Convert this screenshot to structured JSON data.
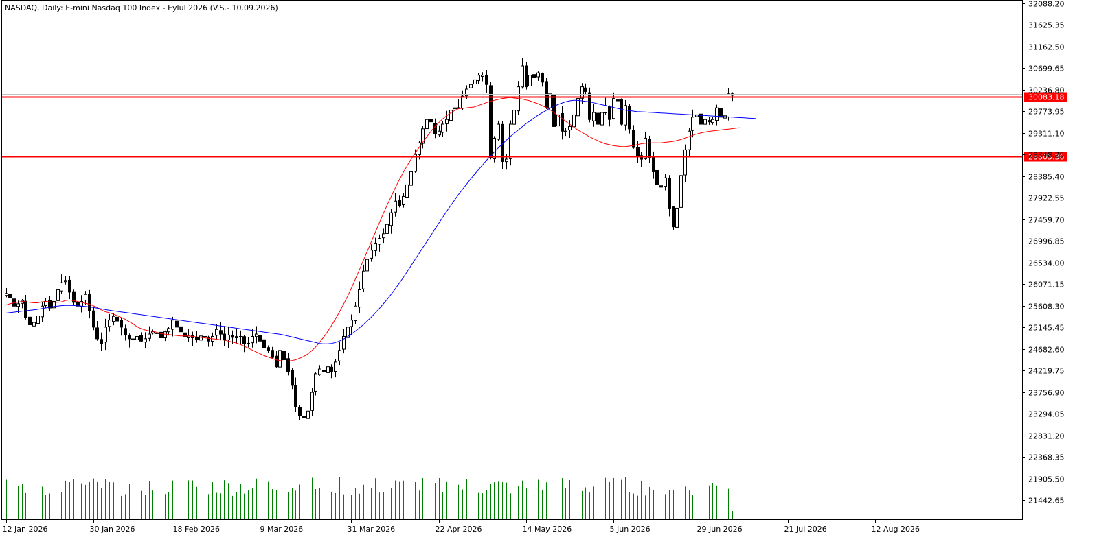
{
  "chart_data": {
    "type": "candlestick",
    "title": "NASDAQ, Daily:  E-mini Nasdaq 100 Index - Eylul 2026 (V.S.- 10.09.2026)",
    "y_ticks": [
      "32088.20",
      "31625.35",
      "31162.50",
      "30699.65",
      "30236.80",
      "29773.95",
      "29311.10",
      "28848.25",
      "28385.40",
      "27922.55",
      "27459.70",
      "26996.85",
      "26534.00",
      "26071.15",
      "25608.30",
      "25145.45",
      "24682.60",
      "24219.75",
      "23756.90",
      "23294.05",
      "22831.20",
      "22368.35",
      "21905.50",
      "21442.65"
    ],
    "ylim": [
      21442.65,
      32088.2
    ],
    "x_ticks": [
      "12 Jan 2026",
      "30 Jan 2026",
      "18 Feb 2026",
      "9 Mar 2026",
      "31 Mar 2026",
      "22 Apr 2026",
      "14 May 2026",
      "5 Jun 2026",
      "29 Jun 2026",
      "21 Jul 2026",
      "12 Aug 2026"
    ],
    "horizontal_lines": [
      {
        "value": 30083.18,
        "label": "30083.18",
        "color": "#ff0000"
      },
      {
        "value": 28805.36,
        "label": "28805.36",
        "color": "#ff0000"
      }
    ],
    "closes": [
      25870,
      25780,
      25600,
      25650,
      25720,
      25360,
      25200,
      25250,
      25390,
      25600,
      25700,
      25560,
      25700,
      25950,
      26100,
      26150,
      25900,
      25680,
      25600,
      25700,
      25850,
      25500,
      25150,
      24900,
      24800,
      25150,
      25300,
      25380,
      25280,
      25150,
      24980,
      24900,
      24880,
      24950,
      24850,
      24900,
      25000,
      25050,
      25020,
      24920,
      25050,
      25120,
      25300,
      25150,
      25050,
      24950,
      24960,
      24920,
      24880,
      24960,
      24950,
      24850,
      24950,
      25100,
      25000,
      24880,
      24980,
      24930,
      24920,
      24950,
      24800,
      24800,
      24950,
      25000,
      24850,
      24700,
      24650,
      24500,
      24300,
      24650,
      24450,
      24200,
      23900,
      23450,
      23250,
      23200,
      23350,
      23750,
      24150,
      24250,
      24200,
      24300,
      24200,
      24400,
      24650,
      24950,
      25150,
      25300,
      25600,
      25950,
      26350,
      26600,
      26800,
      26950,
      27050,
      27150,
      27350,
      27600,
      27850,
      27750,
      27950,
      28200,
      28480,
      28850,
      29100,
      29400,
      29600,
      29550,
      29300,
      29350,
      29500,
      29600,
      29800,
      29850,
      29850,
      30100,
      30250,
      30350,
      30450,
      30550,
      30550,
      30350,
      28780,
      29200,
      29500,
      28700,
      28750,
      29500,
      29800,
      30300,
      30750,
      30300,
      30550,
      30500,
      30600,
      30400,
      29850,
      30150,
      29450,
      29700,
      29350,
      29350,
      29450,
      29700,
      30050,
      30300,
      30200,
      29600,
      29750,
      29500,
      29750,
      29900,
      29600,
      30050,
      30000,
      29500,
      29900,
      29400,
      29000,
      28800,
      28750,
      29200,
      28780,
      28480,
      28200,
      28150,
      28350,
      27700,
      27300,
      27700,
      28400,
      28950,
      29350,
      29650,
      29700,
      29500,
      29600,
      29550,
      29600,
      29850,
      29650,
      29680,
      30150,
      30120
    ],
    "ma_red": {
      "start_index": 0,
      "values": [
        25620,
        25650,
        25670,
        25680,
        25700,
        25690,
        25680,
        25670,
        25670,
        25690,
        25700,
        25690,
        25680,
        25680,
        25690,
        25720,
        25730,
        25720,
        25700,
        25680,
        25660,
        25640,
        25610,
        25570,
        25520,
        25480,
        25460,
        25430,
        25400,
        25360,
        25320,
        25270,
        25220,
        25160,
        25120,
        25090,
        25070,
        25060,
        25040,
        25010,
        25000,
        24990,
        24980,
        24970,
        24960,
        24960,
        24960,
        24950,
        24940,
        24930,
        24920,
        24910,
        24900,
        24890,
        24880,
        24870,
        24850,
        24830,
        24810,
        24780,
        24740,
        24700,
        24660,
        24620,
        24580,
        24540,
        24510,
        24480,
        24450,
        24430,
        24420,
        24420,
        24430,
        24450,
        24480,
        24520,
        24570,
        24640,
        24720,
        24820,
        24930,
        25050,
        25180,
        25320,
        25470,
        25630,
        25800,
        25980,
        26170,
        26370,
        26570,
        26770,
        26970,
        27170,
        27370,
        27570,
        27760,
        27940,
        28120,
        28290,
        28450,
        28600,
        28740,
        28870,
        28990,
        29110,
        29230,
        29340,
        29440,
        29530,
        29610,
        29680,
        29740,
        29790,
        29830,
        29840,
        29850,
        29860,
        29870,
        29900,
        29930,
        29960,
        29990,
        30010,
        30030,
        30050,
        30060,
        30070,
        30060,
        30050,
        30040,
        30020,
        30000,
        29970,
        29940,
        29900,
        29860,
        29810,
        29750,
        29690,
        29630,
        29560,
        29500,
        29440,
        29380,
        29330,
        29280,
        29230,
        29190,
        29150,
        29110,
        29080,
        29060,
        29040,
        29030,
        29020,
        29020,
        29030,
        29040,
        29060,
        29080,
        29090,
        29100,
        29100,
        29100,
        29100,
        29110,
        29120,
        29130,
        29150,
        29170,
        29200,
        29230,
        29260,
        29290,
        29310,
        29330,
        29345,
        29355,
        29365,
        29375,
        29385,
        29395,
        29405,
        29415,
        29425
      ]
    },
    "ma_blue": {
      "start_index": 0,
      "values": [
        25450,
        25460,
        25470,
        25480,
        25490,
        25500,
        25510,
        25520,
        25530,
        25545,
        25560,
        25575,
        25590,
        25600,
        25610,
        25615,
        25615,
        25612,
        25608,
        25600,
        25592,
        25582,
        25570,
        25556,
        25540,
        25526,
        25512,
        25500,
        25488,
        25476,
        25464,
        25452,
        25440,
        25428,
        25416,
        25404,
        25392,
        25380,
        25368,
        25356,
        25344,
        25332,
        25320,
        25308,
        25296,
        25284,
        25272,
        25260,
        25248,
        25236,
        25224,
        25212,
        25200,
        25188,
        25176,
        25164,
        25152,
        25140,
        25128,
        25116,
        25104,
        25092,
        25080,
        25068,
        25056,
        25044,
        25032,
        25020,
        25008,
        24996,
        24980,
        24960,
        24940,
        24920,
        24900,
        24880,
        24860,
        24840,
        24820,
        24800,
        24790,
        24790,
        24800,
        24820,
        24850,
        24890,
        24940,
        25000,
        25060,
        25130,
        25200,
        25280,
        25360,
        25450,
        25540,
        25640,
        25740,
        25850,
        25960,
        26080,
        26200,
        26330,
        26460,
        26590,
        26720,
        26850,
        26980,
        27110,
        27240,
        27370,
        27500,
        27630,
        27750,
        27870,
        27990,
        28100,
        28210,
        28320,
        28420,
        28520,
        28620,
        28720,
        28810,
        28900,
        28990,
        29070,
        29150,
        29230,
        29300,
        29370,
        29440,
        29510,
        29570,
        29630,
        29690,
        29740,
        29790,
        29840,
        29880,
        29920,
        29950,
        29980,
        30000,
        30010,
        30010,
        30000,
        29990,
        29980,
        29960,
        29940,
        29920,
        29900,
        29880,
        29860,
        29840,
        29820,
        29800,
        29790,
        29780,
        29770,
        29765,
        29760,
        29755,
        29750,
        29745,
        29740,
        29735,
        29730,
        29725,
        29720,
        29715,
        29710,
        29705,
        29700,
        29695,
        29690,
        29685,
        29680,
        29675,
        29670,
        29665,
        29660,
        29655,
        29650,
        29645,
        29640,
        29635,
        29630,
        29625,
        29620
      ]
    }
  }
}
